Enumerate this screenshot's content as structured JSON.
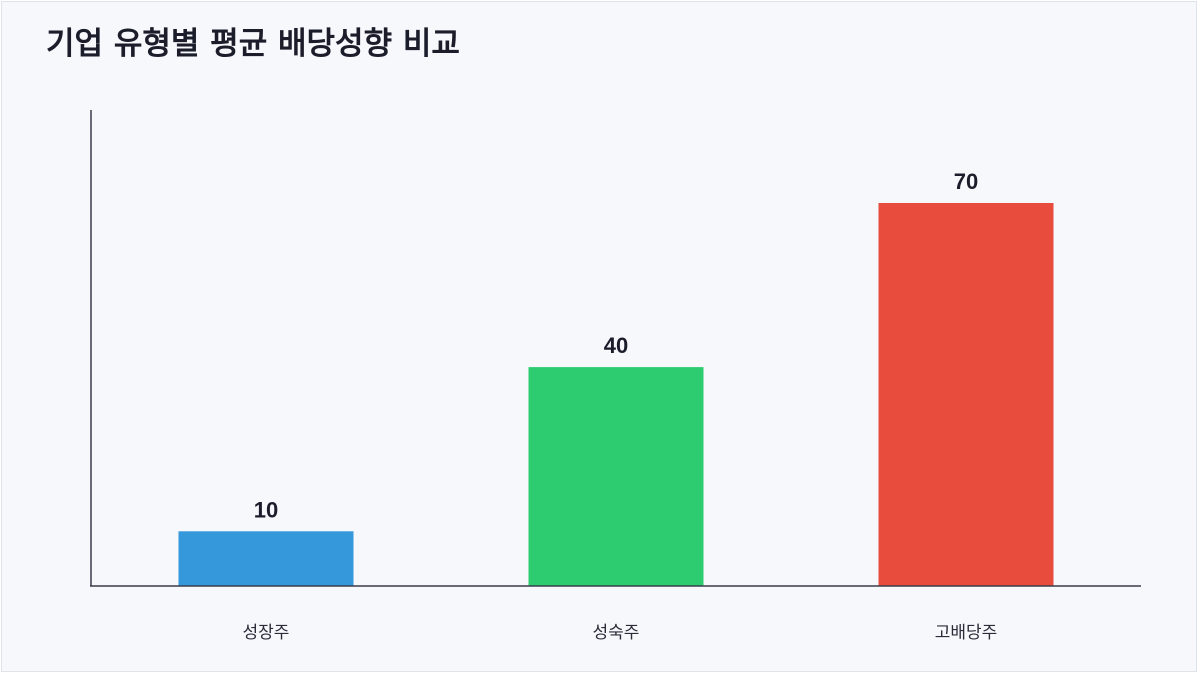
{
  "chart_data": {
    "type": "bar",
    "title": "기업 유형별 평균 배당성향 비교",
    "categories": [
      "성장주",
      "성숙주",
      "고배당주"
    ],
    "values": [
      10,
      40,
      70
    ],
    "colors": [
      "#3498db",
      "#2ecc71",
      "#e74c3c"
    ],
    "ylim": [
      0,
      87
    ],
    "grid": false,
    "xlabel": "",
    "ylabel": ""
  }
}
